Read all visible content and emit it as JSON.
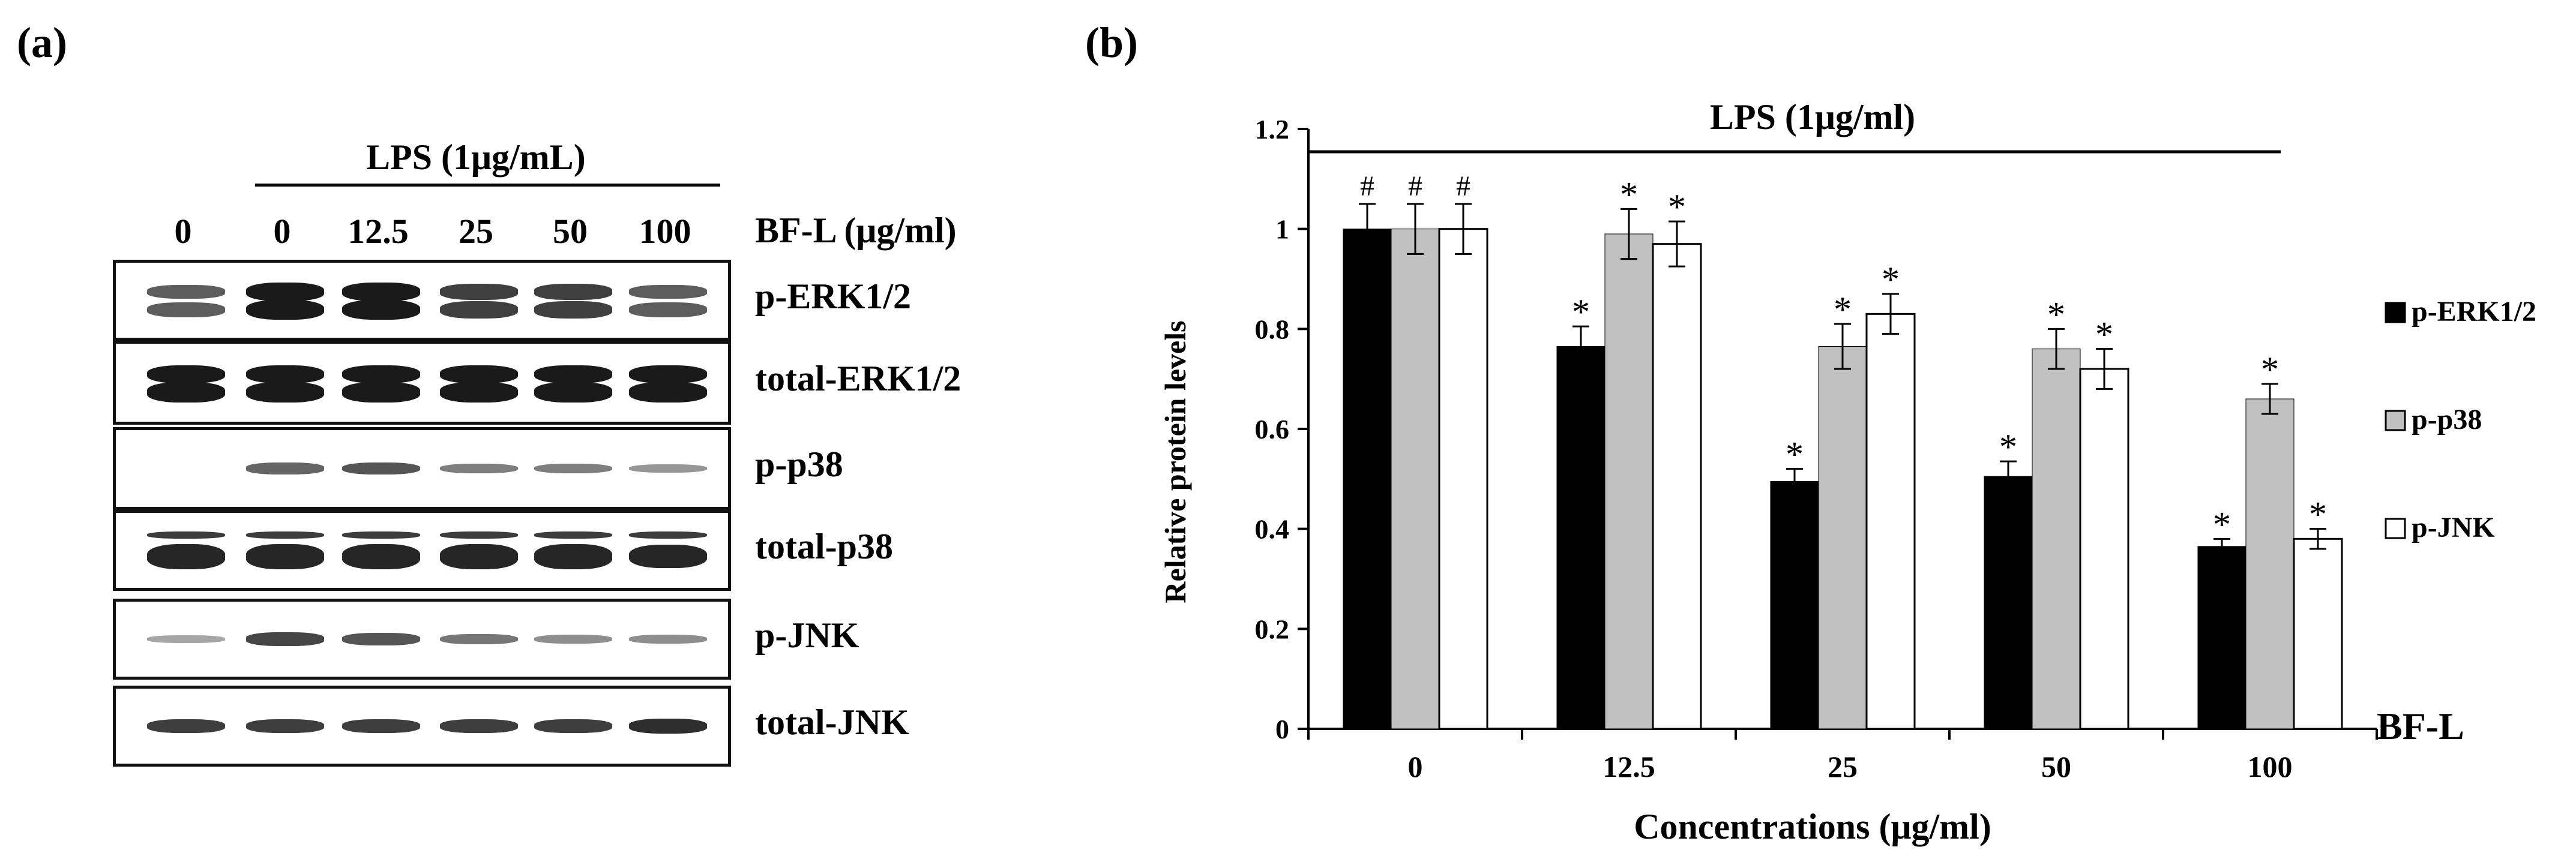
{
  "panel_a": {
    "label": "(a)",
    "lps_header": "LPS (1μg/mL)",
    "concentration_header": "BF-L (μg/ml)",
    "lanes": [
      "0",
      "0",
      "12.5",
      "25",
      "50",
      "100"
    ],
    "blots": [
      {
        "label": "p-ERK1/2",
        "band_intensity": [
          0.55,
          1.0,
          1.0,
          0.75,
          0.75,
          0.55
        ]
      },
      {
        "label": "total-ERK1/2",
        "band_intensity": [
          1.0,
          1.0,
          1.0,
          1.0,
          1.0,
          1.0
        ]
      },
      {
        "label": "p-p38",
        "band_intensity": [
          0.0,
          0.6,
          0.7,
          0.45,
          0.45,
          0.3
        ]
      },
      {
        "label": "total-p38",
        "band_intensity": [
          1.0,
          1.0,
          1.0,
          1.0,
          1.0,
          0.9
        ]
      },
      {
        "label": "p-JNK",
        "band_intensity": [
          0.2,
          0.8,
          0.7,
          0.5,
          0.35,
          0.35
        ]
      },
      {
        "label": "total-JNK",
        "band_intensity": [
          0.85,
          0.85,
          0.85,
          0.85,
          0.85,
          0.95
        ]
      }
    ]
  },
  "chart_data": {
    "type": "bar",
    "panel_label": "(b)",
    "title": "LPS (1μg/ml)",
    "xlabel": "Concentrations (μg/ml)",
    "ylabel": "Relative protein levels",
    "x_side_label": "BF-L",
    "categories": [
      "0",
      "12.5",
      "25",
      "50",
      "100"
    ],
    "ylim": [
      0,
      1.2
    ],
    "yticks": [
      "0",
      "0.2",
      "0.4",
      "0.6",
      "0.8",
      "1",
      "1.2"
    ],
    "grid": false,
    "legend_position": "right",
    "series": [
      {
        "name": "p-ERK1/2",
        "color": "#000000",
        "values": [
          1.0,
          0.765,
          0.495,
          0.505,
          0.365
        ],
        "errors": [
          0.05,
          0.04,
          0.025,
          0.03,
          0.015
        ],
        "marks": [
          "#",
          "*",
          "*",
          "*",
          "*"
        ]
      },
      {
        "name": "p-p38",
        "color": "#c0c0c0",
        "values": [
          1.0,
          0.99,
          0.765,
          0.76,
          0.66
        ],
        "errors": [
          0.05,
          0.05,
          0.045,
          0.04,
          0.03
        ],
        "marks": [
          "#",
          "*",
          "*",
          "*",
          "*"
        ]
      },
      {
        "name": "p-JNK",
        "color": "#ffffff",
        "values": [
          1.0,
          0.97,
          0.83,
          0.72,
          0.38
        ],
        "errors": [
          0.05,
          0.045,
          0.04,
          0.04,
          0.02
        ],
        "marks": [
          "#",
          "*",
          "*",
          "*",
          "*"
        ]
      }
    ]
  }
}
